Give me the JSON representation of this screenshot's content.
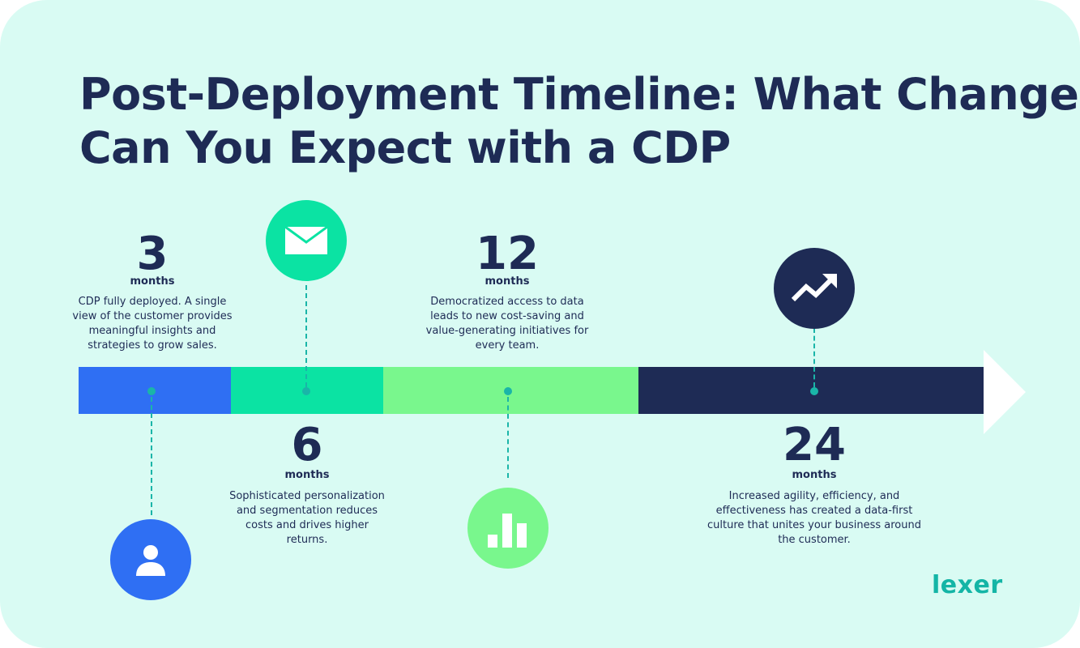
{
  "title": {
    "line1": "Post-Deployment Timeline: What Changes",
    "line2": "Can You Expect with a CDP"
  },
  "milestones": [
    {
      "number": "3",
      "unit": "months",
      "description": "CDP fully deployed. A single view of the customer provides meaningful insights and strategies to grow sales.",
      "icon": "user-icon",
      "color": "#2f6ff3"
    },
    {
      "number": "6",
      "unit": "months",
      "description": "Sophisticated personalization and segmentation reduces costs and drives higher returns.",
      "icon": "envelope-icon",
      "color": "#0be3a3"
    },
    {
      "number": "12",
      "unit": "months",
      "description": "Democratized access to data leads to new cost-saving and value-generating initiatives for every team.",
      "icon": "bar-chart-icon",
      "color": "#79f78d"
    },
    {
      "number": "24",
      "unit": "months",
      "description": "Increased agility, efficiency, and effectiveness has created a data-first culture that unites your business around the customer.",
      "icon": "trend-up-icon",
      "color": "#1e2b55"
    }
  ],
  "brand": {
    "logo_text": "lexer",
    "accent": "#14b5a6",
    "ink": "#1e2b55",
    "background": "#d9fbf3"
  }
}
